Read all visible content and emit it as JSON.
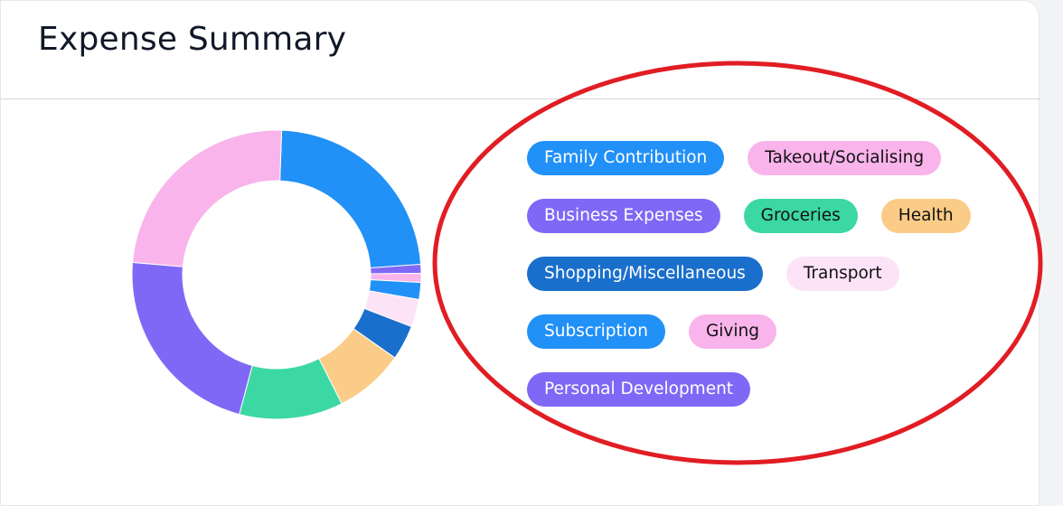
{
  "header": {
    "title": "Expense Summary"
  },
  "colors": {
    "annotation": "#e11d24",
    "card_background": "#ffffff",
    "divider": "#d1d5db"
  },
  "legend": [
    [
      {
        "label": "Family Contribution",
        "color": "#2190f7",
        "text_color": "#ffffff"
      },
      {
        "label": "Takeout/Socialising",
        "color": "#f9b4eb",
        "text_color": "#111111"
      }
    ],
    [
      {
        "label": "Business Expenses",
        "color": "#8068f6",
        "text_color": "#ffffff"
      },
      {
        "label": "Groceries",
        "color": "#3cd8a3",
        "text_color": "#111111"
      },
      {
        "label": "Health",
        "color": "#fbcc87",
        "text_color": "#111111"
      }
    ],
    [
      {
        "label": "Shopping/Miscellaneous",
        "color": "#1a6fcc",
        "text_color": "#ffffff"
      },
      {
        "label": "Transport",
        "color": "#fde3f7",
        "text_color": "#111111"
      }
    ],
    [
      {
        "label": "Subscription",
        "color": "#2190f7",
        "text_color": "#ffffff"
      },
      {
        "label": "Giving",
        "color": "#f9b4eb",
        "text_color": "#111111"
      }
    ],
    [
      {
        "label": "Personal Development",
        "color": "#8068f6",
        "text_color": "#ffffff"
      }
    ]
  ],
  "chart_data": {
    "type": "pie",
    "donut": true,
    "start_angle_deg": 2,
    "slices": [
      {
        "category": "Family Contribution",
        "percent": 23.3,
        "color": "#2190f7"
      },
      {
        "category": "Personal Development",
        "percent": 1.0,
        "color": "#8068f6"
      },
      {
        "category": "Giving",
        "percent": 1.0,
        "color": "#f9b4eb"
      },
      {
        "category": "Subscription",
        "percent": 1.9,
        "color": "#2190f7"
      },
      {
        "category": "Transport",
        "percent": 3.1,
        "color": "#fde3f7"
      },
      {
        "category": "Shopping/Miscellaneous",
        "percent": 3.9,
        "color": "#1a6fcc"
      },
      {
        "category": "Health",
        "percent": 7.8,
        "color": "#fbcc87"
      },
      {
        "category": "Groceries",
        "percent": 11.6,
        "color": "#3cd8a3"
      },
      {
        "category": "Business Expenses",
        "percent": 22.2,
        "color": "#8068f6"
      },
      {
        "category": "Takeout/Socialising",
        "percent": 24.2,
        "color": "#f9b4eb"
      }
    ]
  }
}
